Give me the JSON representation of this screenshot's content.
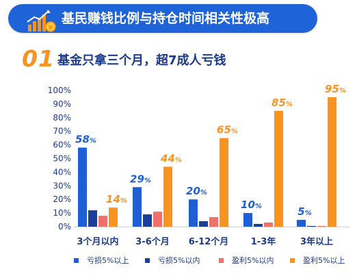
{
  "header": {
    "title": "基民赚钱比例与持仓时间相关性极高",
    "icon": "rising-bar-chart-coin-icon",
    "colors": {
      "banner": "#1f63d8",
      "icon_orange": "#f7931e"
    }
  },
  "subheading": {
    "number": "01",
    "text": "基金只拿三个月，超7成人亏钱"
  },
  "chart_data": {
    "type": "bar",
    "categories": [
      "3个月以内",
      "3-6个月",
      "6-12个月",
      "1-3年",
      "3年以上"
    ],
    "series": [
      {
        "name": "亏损5%以上",
        "color": "#1f5fd6",
        "values": [
          58,
          29,
          20,
          10,
          5
        ]
      },
      {
        "name": "亏损5%以内",
        "color": "#1a3f9b",
        "values": [
          12,
          9,
          4,
          2,
          0.5
        ]
      },
      {
        "name": "盈利5%以内",
        "color": "#f0716a",
        "values": [
          8,
          11,
          7,
          3,
          0.5
        ]
      },
      {
        "name": "盈利5%以上",
        "color": "#f7931e",
        "values": [
          14,
          44,
          65,
          85,
          95
        ]
      }
    ],
    "data_labels": {
      "亏损5%以上": [
        "58%",
        "29%",
        "20%",
        "10%",
        "5%"
      ],
      "盈利5%以上": [
        "14%",
        "44%",
        "65%",
        "85%",
        "95%"
      ]
    },
    "y_ticks": [
      "0%",
      "10%",
      "20%",
      "30%",
      "40%",
      "50%",
      "60%",
      "70%",
      "80%",
      "90%",
      "100%"
    ],
    "ylim": [
      0,
      100
    ],
    "grid": false,
    "legend_position": "bottom"
  }
}
